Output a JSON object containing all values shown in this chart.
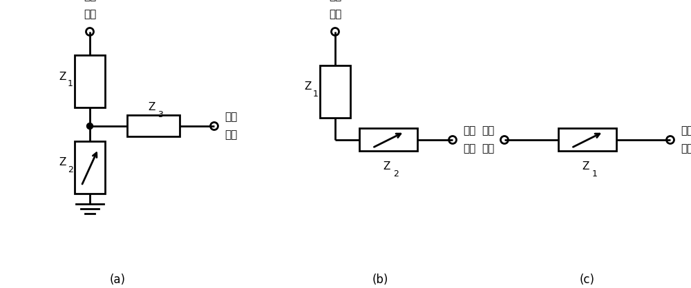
{
  "bg_color": "#ffffff",
  "line_color": "#000000",
  "line_width": 2.0,
  "fig_width": 10.0,
  "fig_height": 4.18,
  "font_size": 11,
  "circuit_a": {
    "label": "(a)",
    "input_label_1": "电学",
    "input_label_2": "输入",
    "z1_label": "Z",
    "z1_sub": "1",
    "z2_label": "Z",
    "z2_sub": "2",
    "z3_label": "Z",
    "z3_sub": "3",
    "output_label_1": "补偿",
    "output_label_2": "信号"
  },
  "circuit_b": {
    "label": "(b)",
    "input_label_1": "电学",
    "input_label_2": "输入",
    "z1_label": "Z",
    "z1_sub": "1",
    "z2_label": "Z",
    "z2_sub": "2",
    "output_label_1": "补偿",
    "output_label_2": "信号"
  },
  "circuit_c": {
    "label": "(c)",
    "input_label_1": "电学",
    "input_label_2": "输入",
    "z1_label": "Z",
    "z1_sub": "1",
    "output_label_1": "补偿",
    "output_label_2": "信号"
  }
}
